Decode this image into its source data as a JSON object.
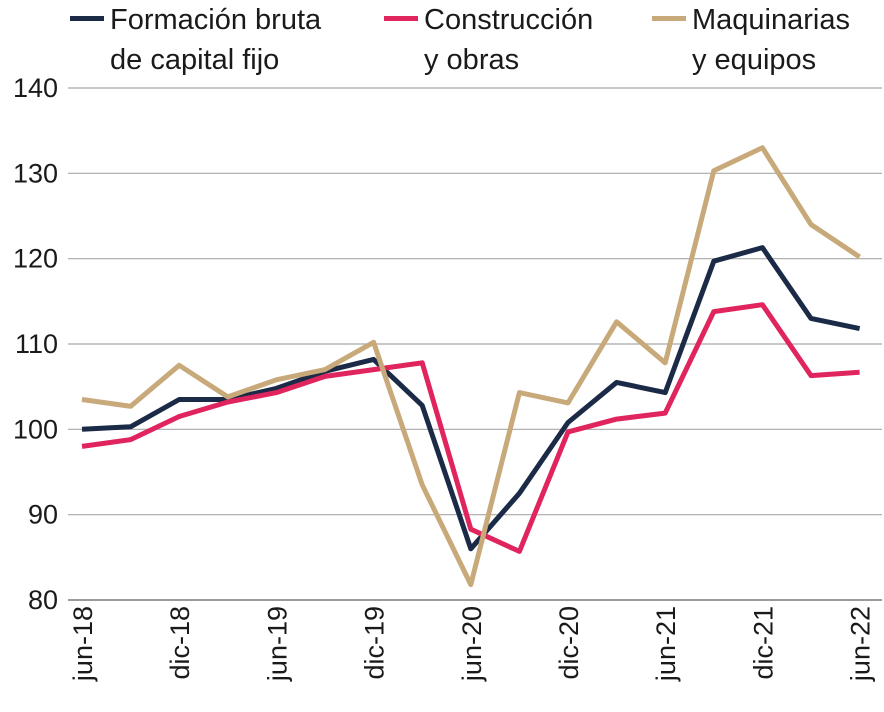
{
  "chart_data": {
    "type": "line",
    "x": [
      "jun-18",
      "sep-18",
      "dic-18",
      "mar-19",
      "jun-19",
      "sep-19",
      "dic-19",
      "mar-20",
      "jun-20",
      "sep-20",
      "dic-20",
      "mar-21",
      "jun-21",
      "sep-21",
      "dic-21",
      "mar-22",
      "jun-22"
    ],
    "x_tick_labels": [
      "jun-18",
      "dic-18",
      "jun-19",
      "dic-19",
      "jun-20",
      "dic-20",
      "jun-21",
      "dic-21",
      "jun-22"
    ],
    "y_ticks": [
      80,
      90,
      100,
      110,
      120,
      130,
      140
    ],
    "ylim": [
      80,
      140
    ],
    "grid": true,
    "legend_position": "top",
    "series": [
      {
        "name": "Formación bruta\nde capital fijo",
        "color": "#1b2a47",
        "values": [
          100.0,
          100.3,
          103.5,
          103.5,
          104.8,
          106.8,
          108.2,
          102.8,
          86.0,
          92.5,
          100.8,
          105.5,
          104.3,
          119.7,
          121.3,
          113.0,
          111.8
        ]
      },
      {
        "name": "Construcción\ny obras",
        "color": "#e0245e",
        "values": [
          98.0,
          98.8,
          101.5,
          103.2,
          104.3,
          106.2,
          107.0,
          107.8,
          88.3,
          85.7,
          99.7,
          101.2,
          101.9,
          113.8,
          114.6,
          106.3,
          106.7
        ]
      },
      {
        "name": "Maquinarias\ny equipos",
        "color": "#c8a97a",
        "values": [
          103.5,
          102.7,
          107.5,
          103.8,
          105.8,
          107.0,
          110.2,
          93.5,
          81.8,
          104.3,
          103.1,
          112.6,
          107.8,
          130.3,
          133.0,
          124.0,
          120.2
        ]
      }
    ]
  }
}
